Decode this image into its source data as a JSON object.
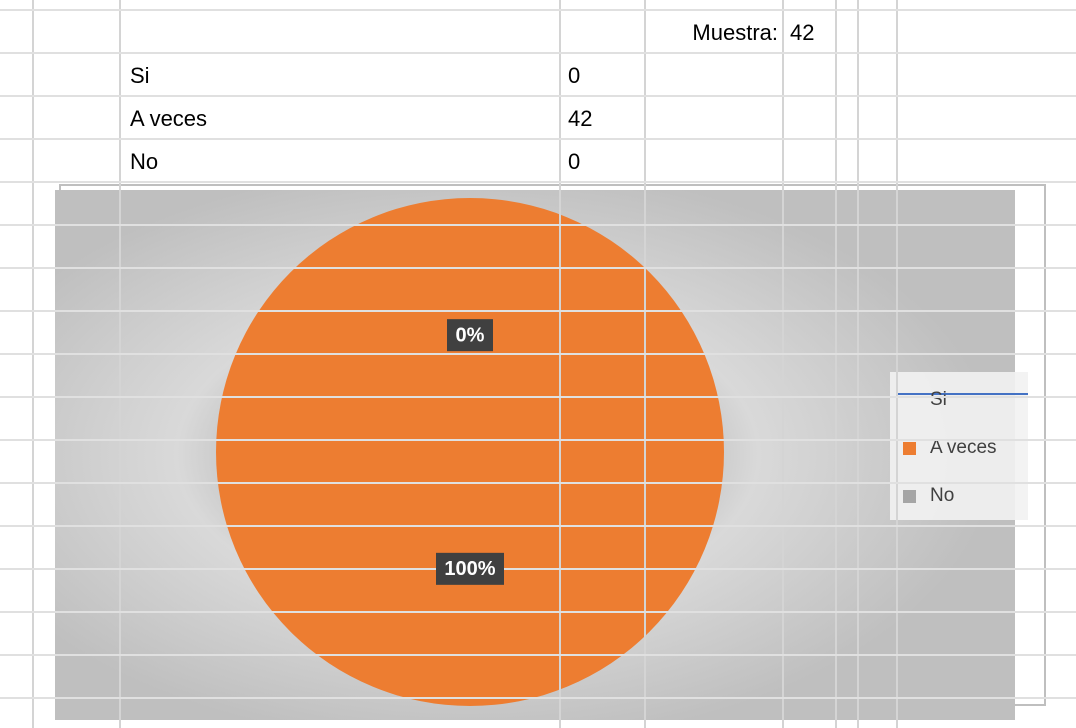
{
  "table": {
    "header": {
      "label": "Muestra:",
      "value": "42"
    },
    "rows": [
      [
        "Si",
        "0"
      ],
      [
        "A veces",
        "42"
      ],
      [
        "No",
        "0"
      ]
    ]
  },
  "chart_data": {
    "type": "pie",
    "categories": [
      "Si",
      "A veces",
      "No"
    ],
    "values": [
      0,
      100,
      0
    ],
    "value_labels": [
      null,
      "100%",
      "0%"
    ],
    "colors": [
      "#4472c4",
      "#ed7d31",
      "#a5a5a5"
    ],
    "legend": "right"
  }
}
